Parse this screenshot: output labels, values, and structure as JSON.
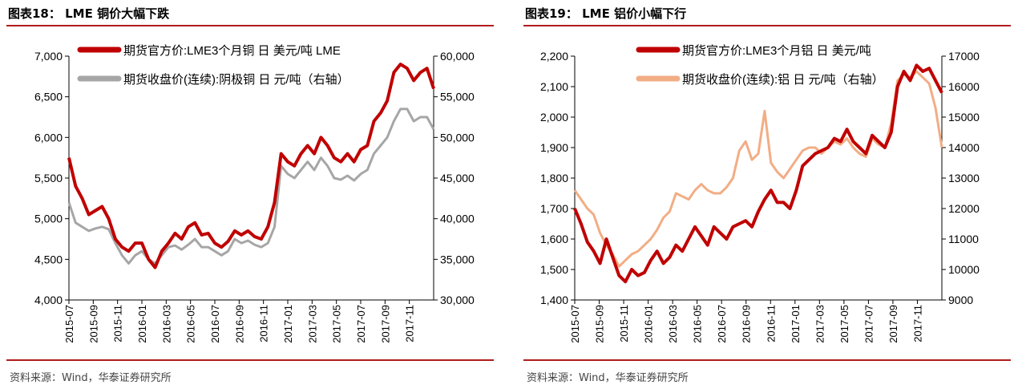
{
  "chart_data": [
    {
      "type": "line",
      "figure_label": "图表18：",
      "title": "LME 铜价大幅下跌",
      "source": "资料来源：Wind，华泰证券研究所",
      "x_labels": [
        "2015-07",
        "2015-09",
        "2015-11",
        "2016-01",
        "2016-03",
        "2016-05",
        "2016-07",
        "2016-09",
        "2016-11",
        "2017-01",
        "2017-03",
        "2017-05",
        "2017-07",
        "2017-09",
        "2017-11"
      ],
      "y_left": {
        "ylim": [
          4000,
          7000
        ],
        "ticks": [
          "4,000",
          "4,500",
          "5,000",
          "5,500",
          "6,000",
          "6,500",
          "7,000"
        ]
      },
      "y_right": {
        "ylim": [
          30000,
          60000
        ],
        "ticks": [
          "30,000",
          "35,000",
          "40,000",
          "45,000",
          "50,000",
          "55,000",
          "60,000"
        ]
      },
      "series": [
        {
          "name": "期货官方价:LME3个月铜 日 美元/吨 LME",
          "axis": "left",
          "color": "#c00000",
          "values": [
            5750,
            5400,
            5250,
            5050,
            5100,
            5150,
            5000,
            4750,
            4650,
            4600,
            4700,
            4700,
            4500,
            4400,
            4600,
            4700,
            4820,
            4750,
            4900,
            4950,
            4800,
            4820,
            4700,
            4650,
            4720,
            4850,
            4800,
            4850,
            4780,
            4750,
            4900,
            5200,
            5800,
            5700,
            5650,
            5800,
            5900,
            5800,
            6000,
            5900,
            5750,
            5700,
            5800,
            5700,
            5850,
            5900,
            6200,
            6300,
            6450,
            6800,
            6900,
            6850,
            6700,
            6800,
            6850,
            6600
          ]
        },
        {
          "name": "期货收盘价(连续):阴极铜 日 元/吨（右轴）",
          "axis": "right",
          "color": "#a6a6a6",
          "values": [
            42000,
            39500,
            39000,
            38500,
            38800,
            39000,
            38700,
            37000,
            35500,
            34500,
            35500,
            36000,
            35000,
            34500,
            35500,
            36500,
            36700,
            36200,
            36800,
            37500,
            36500,
            36500,
            36000,
            35500,
            36000,
            37500,
            37000,
            37300,
            36800,
            36500,
            37000,
            39000,
            46500,
            45500,
            45000,
            46000,
            47000,
            46000,
            47500,
            46500,
            45000,
            44800,
            45300,
            44700,
            45500,
            46000,
            48000,
            49000,
            50000,
            52000,
            53500,
            53500,
            52000,
            52500,
            52500,
            51000
          ]
        }
      ]
    },
    {
      "type": "line",
      "figure_label": "图表19：",
      "title": "LME 铝价小幅下行",
      "source": "资料来源：Wind，华泰证券研究所",
      "x_labels": [
        "2015-07",
        "2015-09",
        "2015-11",
        "2016-01",
        "2016-03",
        "2016-05",
        "2016-07",
        "2016-09",
        "2016-11",
        "2017-01",
        "2017-03",
        "2017-05",
        "2017-07",
        "2017-09",
        "2017-11"
      ],
      "y_left": {
        "ylim": [
          1400,
          2200
        ],
        "ticks": [
          "1,400",
          "1,500",
          "1,600",
          "1,700",
          "1,800",
          "1,900",
          "2,000",
          "2,100",
          "2,200"
        ]
      },
      "y_right": {
        "ylim": [
          9000,
          17000
        ],
        "ticks": [
          "9000",
          "10000",
          "11000",
          "12000",
          "13000",
          "14000",
          "15000",
          "16000",
          "17000"
        ]
      },
      "series": [
        {
          "name": "期货官方价:LME3个月铝 日 美元/吨",
          "axis": "left",
          "color": "#c00000",
          "values": [
            1700,
            1650,
            1590,
            1560,
            1520,
            1600,
            1540,
            1480,
            1460,
            1500,
            1480,
            1490,
            1530,
            1560,
            1520,
            1540,
            1580,
            1560,
            1600,
            1640,
            1610,
            1580,
            1640,
            1620,
            1600,
            1640,
            1650,
            1660,
            1640,
            1690,
            1730,
            1760,
            1720,
            1720,
            1700,
            1760,
            1840,
            1860,
            1880,
            1890,
            1900,
            1930,
            1920,
            1960,
            1920,
            1900,
            1880,
            1940,
            1920,
            1900,
            1950,
            2100,
            2150,
            2120,
            2170,
            2150,
            2160,
            2120,
            2080
          ]
        },
        {
          "name": "期货收盘价(连续):铝 日 元/吨（右轴）",
          "axis": "right",
          "color": "#f2ad85",
          "values": [
            12600,
            12300,
            12000,
            11800,
            11200,
            10800,
            10500,
            10100,
            10300,
            10500,
            10600,
            10800,
            11000,
            11300,
            11700,
            11900,
            12500,
            12400,
            12300,
            12600,
            12800,
            12600,
            12500,
            12500,
            12700,
            13000,
            13900,
            14200,
            13600,
            13800,
            15200,
            13500,
            13200,
            13000,
            13300,
            13600,
            13900,
            14000,
            14000,
            13800,
            14000,
            14200,
            14100,
            14300,
            14000,
            13800,
            13700,
            14300,
            14100,
            14000,
            14800,
            16200,
            16400,
            16300,
            16500,
            16300,
            16100,
            15300,
            14000
          ]
        }
      ]
    }
  ]
}
